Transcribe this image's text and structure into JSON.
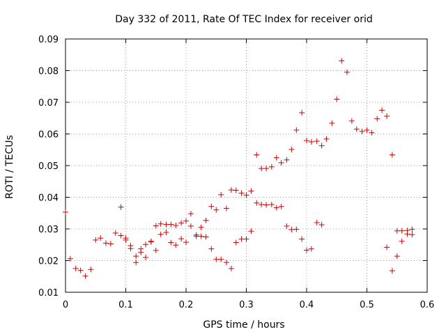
{
  "chart_data": {
    "type": "scatter",
    "title": "Day 332 of 2011, Rate Of TEC Index for receiver orid",
    "xlabel": "GPS time / hours",
    "ylabel": "ROTI / TECUs",
    "xlim": [
      0,
      0.6
    ],
    "ylim": [
      0.01,
      0.09
    ],
    "xticks": [
      "0",
      "0.1",
      "0.2",
      "0.3",
      "0.4",
      "0.5",
      "0.6"
    ],
    "yticks": [
      "0.01",
      "0.02",
      "0.03",
      "0.04",
      "0.05",
      "0.06",
      "0.07",
      "0.08",
      "0.09"
    ],
    "grid": true,
    "marker_color": "#cc0000",
    "grid_color": "#a0a0a0",
    "points": [
      [
        0.0,
        0.0353
      ],
      [
        0.008,
        0.0206
      ],
      [
        0.017,
        0.0175
      ],
      [
        0.025,
        0.0169
      ],
      [
        0.033,
        0.0151
      ],
      [
        0.042,
        0.0172
      ],
      [
        0.05,
        0.0265
      ],
      [
        0.058,
        0.0271
      ],
      [
        0.067,
        0.0255
      ],
      [
        0.075,
        0.0253
      ],
      [
        0.083,
        0.0287
      ],
      [
        0.092,
        0.0369
      ],
      [
        0.092,
        0.0279
      ],
      [
        0.1,
        0.0271
      ],
      [
        0.1,
        0.0265
      ],
      [
        0.108,
        0.0247
      ],
      [
        0.108,
        0.0238
      ],
      [
        0.117,
        0.0214
      ],
      [
        0.117,
        0.0194
      ],
      [
        0.125,
        0.0237
      ],
      [
        0.125,
        0.0226
      ],
      [
        0.133,
        0.0251
      ],
      [
        0.133,
        0.021
      ],
      [
        0.142,
        0.0261
      ],
      [
        0.142,
        0.0259
      ],
      [
        0.15,
        0.031
      ],
      [
        0.15,
        0.0232
      ],
      [
        0.158,
        0.0316
      ],
      [
        0.158,
        0.0283
      ],
      [
        0.167,
        0.0314
      ],
      [
        0.167,
        0.0289
      ],
      [
        0.175,
        0.0314
      ],
      [
        0.175,
        0.0257
      ],
      [
        0.183,
        0.0311
      ],
      [
        0.183,
        0.0249
      ],
      [
        0.192,
        0.0319
      ],
      [
        0.192,
        0.0269
      ],
      [
        0.2,
        0.0325
      ],
      [
        0.2,
        0.0258
      ],
      [
        0.208,
        0.0348
      ],
      [
        0.208,
        0.0309
      ],
      [
        0.217,
        0.0281
      ],
      [
        0.217,
        0.0277
      ],
      [
        0.225,
        0.0305
      ],
      [
        0.225,
        0.0277
      ],
      [
        0.233,
        0.0327
      ],
      [
        0.233,
        0.0275
      ],
      [
        0.242,
        0.0371
      ],
      [
        0.242,
        0.0237
      ],
      [
        0.25,
        0.036
      ],
      [
        0.25,
        0.0204
      ],
      [
        0.258,
        0.0408
      ],
      [
        0.258,
        0.0204
      ],
      [
        0.267,
        0.0365
      ],
      [
        0.267,
        0.0194
      ],
      [
        0.275,
        0.0423
      ],
      [
        0.275,
        0.0175
      ],
      [
        0.283,
        0.0422
      ],
      [
        0.283,
        0.0257
      ],
      [
        0.292,
        0.0413
      ],
      [
        0.292,
        0.0268
      ],
      [
        0.3,
        0.0407
      ],
      [
        0.3,
        0.0268
      ],
      [
        0.308,
        0.042
      ],
      [
        0.308,
        0.0293
      ],
      [
        0.317,
        0.0534
      ],
      [
        0.317,
        0.0382
      ],
      [
        0.325,
        0.0491
      ],
      [
        0.325,
        0.0377
      ],
      [
        0.333,
        0.0491
      ],
      [
        0.333,
        0.0376
      ],
      [
        0.342,
        0.0496
      ],
      [
        0.342,
        0.0377
      ],
      [
        0.35,
        0.0525
      ],
      [
        0.35,
        0.0367
      ],
      [
        0.358,
        0.0509
      ],
      [
        0.358,
        0.0371
      ],
      [
        0.367,
        0.0518
      ],
      [
        0.367,
        0.0309
      ],
      [
        0.375,
        0.0551
      ],
      [
        0.375,
        0.0298
      ],
      [
        0.383,
        0.0612
      ],
      [
        0.383,
        0.0299
      ],
      [
        0.392,
        0.0667
      ],
      [
        0.392,
        0.0268
      ],
      [
        0.4,
        0.0579
      ],
      [
        0.4,
        0.0233
      ],
      [
        0.408,
        0.0575
      ],
      [
        0.408,
        0.0237
      ],
      [
        0.417,
        0.0577
      ],
      [
        0.417,
        0.032
      ],
      [
        0.425,
        0.0563
      ],
      [
        0.425,
        0.0313
      ],
      [
        0.433,
        0.0584
      ],
      [
        0.442,
        0.0634
      ],
      [
        0.45,
        0.071
      ],
      [
        0.458,
        0.0831
      ],
      [
        0.467,
        0.0795
      ],
      [
        0.475,
        0.0641
      ],
      [
        0.483,
        0.0615
      ],
      [
        0.492,
        0.0608
      ],
      [
        0.5,
        0.0612
      ],
      [
        0.508,
        0.0604
      ],
      [
        0.517,
        0.0648
      ],
      [
        0.525,
        0.0675
      ],
      [
        0.533,
        0.0656
      ],
      [
        0.533,
        0.0242
      ],
      [
        0.542,
        0.0534
      ],
      [
        0.542,
        0.0168
      ],
      [
        0.55,
        0.0294
      ],
      [
        0.55,
        0.0214
      ],
      [
        0.558,
        0.0294
      ],
      [
        0.558,
        0.0261
      ],
      [
        0.567,
        0.0295
      ],
      [
        0.567,
        0.0284
      ],
      [
        0.575,
        0.0299
      ],
      [
        0.575,
        0.0282
      ]
    ]
  }
}
